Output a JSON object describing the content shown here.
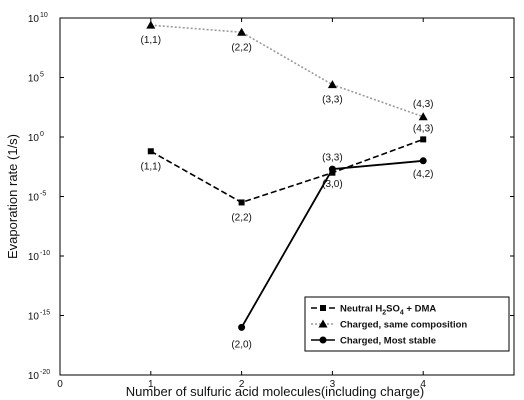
{
  "chart_data": {
    "type": "line",
    "xlabel": "Number of sulfuric acid molecules(including charge)",
    "ylabel": "Evaporation rate (1/s)",
    "xlim": [
      0,
      5
    ],
    "xticks": [
      0,
      1,
      2,
      3,
      4
    ],
    "ylim_log10": [
      -20,
      10
    ],
    "yscale": "log",
    "yticks": [
      {
        "base": "10",
        "exp": "10",
        "log10": 10
      },
      {
        "base": "10",
        "exp": "5",
        "log10": 5
      },
      {
        "base": "10",
        "exp": "0",
        "log10": 0
      },
      {
        "base": "10",
        "exp": "-5",
        "log10": -5
      },
      {
        "base": "10",
        "exp": "-10",
        "log10": -10
      },
      {
        "base": "10",
        "exp": "-15",
        "log10": -15
      },
      {
        "base": "10",
        "exp": "-20",
        "log10": -20
      }
    ],
    "legend_position": "bottom-right",
    "series": [
      {
        "legend_parts": [
          {
            "text": "Neutral H",
            "sub": false
          },
          {
            "text": "2",
            "sub": true
          },
          {
            "text": "SO",
            "sub": false
          },
          {
            "text": "4",
            "sub": true
          },
          {
            "text": " + DMA",
            "sub": false
          }
        ],
        "marker": "square",
        "line": "dashed",
        "color": "#000000",
        "points": [
          {
            "x": 1,
            "log10_y": -1.2,
            "label": "(1,1)"
          },
          {
            "x": 2,
            "log10_y": -5.5,
            "label": "(2,2)"
          },
          {
            "x": 3,
            "log10_y": -3.0,
            "label": "(3,3)"
          },
          {
            "x": 4,
            "log10_y": -0.2,
            "label": "(4,3)"
          }
        ]
      },
      {
        "legend_parts": [
          {
            "text": "Charged, same composition",
            "sub": false
          }
        ],
        "marker": "triangle",
        "line": "dotted",
        "color": "#9a9a9a",
        "points": [
          {
            "x": 1,
            "log10_y": 9.4,
            "label": "(1,1)"
          },
          {
            "x": 2,
            "log10_y": 8.8,
            "label": "(2,2)"
          },
          {
            "x": 3,
            "log10_y": 4.4,
            "label": "(3,3)"
          },
          {
            "x": 4,
            "log10_y": 1.7,
            "label": "(4,3)"
          }
        ]
      },
      {
        "legend_parts": [
          {
            "text": "Charged, Most stable",
            "sub": false
          }
        ],
        "marker": "circle",
        "line": "solid",
        "color": "#000000",
        "points": [
          {
            "x": 2,
            "log10_y": -16.0,
            "label": "(2,0)"
          },
          {
            "x": 3,
            "log10_y": -2.7,
            "label": "(3,0)"
          },
          {
            "x": 4,
            "log10_y": -2.0,
            "label": "(4,2)"
          }
        ]
      }
    ]
  }
}
